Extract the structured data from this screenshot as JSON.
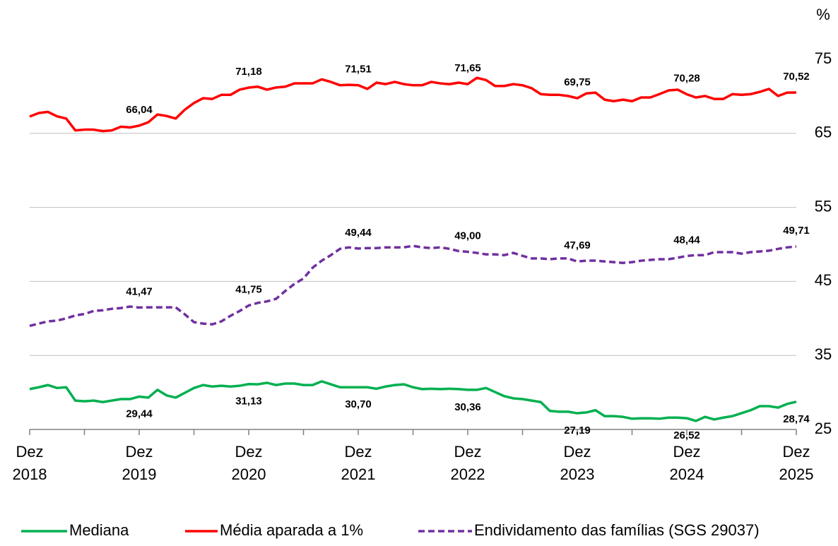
{
  "chart_data": {
    "type": "line",
    "y_unit": "%",
    "categories": [
      "Dez 2018",
      null,
      null,
      null,
      null,
      null,
      null,
      null,
      null,
      null,
      null,
      null,
      "Dez 2019",
      null,
      null,
      null,
      null,
      null,
      null,
      null,
      null,
      null,
      null,
      null,
      "Dez 2020",
      null,
      null,
      null,
      null,
      null,
      null,
      null,
      null,
      null,
      null,
      null,
      "Dez 2021",
      null,
      null,
      null,
      null,
      null,
      null,
      null,
      null,
      null,
      null,
      null,
      "Dez 2022",
      null,
      null,
      null,
      null,
      null,
      null,
      null,
      null,
      null,
      null,
      null,
      "Dez 2023",
      null,
      null,
      null,
      null,
      null,
      null,
      null,
      null,
      null,
      null,
      null,
      "Dez 2024",
      null,
      null,
      null,
      null,
      null,
      null,
      null,
      null,
      null,
      null,
      null,
      "Dez 2025"
    ],
    "ylim": [
      25,
      75
    ],
    "yticks": [
      25,
      35,
      45,
      55,
      65,
      75
    ],
    "grid": true,
    "series": [
      {
        "name": "Mediana",
        "color": "#00b050",
        "dash": false,
        "values": [
          30.45,
          30.7,
          31.0,
          30.6,
          30.7,
          28.9,
          28.8,
          28.9,
          28.7,
          28.9,
          29.1,
          29.1,
          29.44,
          29.3,
          30.35,
          29.6,
          29.3,
          29.95,
          30.6,
          31.0,
          30.8,
          30.9,
          30.8,
          30.9,
          31.13,
          31.1,
          31.3,
          31.0,
          31.2,
          31.2,
          31.0,
          31.0,
          31.5,
          31.1,
          30.7,
          30.7,
          30.7,
          30.7,
          30.5,
          30.8,
          31.0,
          31.1,
          30.7,
          30.45,
          30.5,
          30.45,
          30.5,
          30.45,
          30.36,
          30.35,
          30.6,
          30.05,
          29.5,
          29.2,
          29.1,
          28.9,
          28.7,
          27.5,
          27.4,
          27.4,
          27.19,
          27.3,
          27.6,
          26.8,
          26.8,
          26.7,
          26.45,
          26.5,
          26.5,
          26.45,
          26.6,
          26.6,
          26.52,
          26.15,
          26.7,
          26.35,
          26.6,
          26.8,
          27.2,
          27.6,
          28.15,
          28.15,
          27.95,
          28.45,
          28.74
        ],
        "value_labels": [
          null,
          null,
          null,
          null,
          null,
          null,
          null,
          null,
          null,
          null,
          null,
          null,
          "29,44",
          null,
          null,
          null,
          null,
          null,
          null,
          null,
          null,
          null,
          null,
          null,
          "31,13",
          null,
          null,
          null,
          null,
          null,
          null,
          null,
          null,
          null,
          null,
          null,
          "30,70",
          null,
          null,
          null,
          null,
          null,
          null,
          null,
          null,
          null,
          null,
          null,
          "30,36",
          null,
          null,
          null,
          null,
          null,
          null,
          null,
          null,
          null,
          null,
          null,
          "27,19",
          null,
          null,
          null,
          null,
          null,
          null,
          null,
          null,
          null,
          null,
          null,
          "26,52",
          null,
          null,
          null,
          null,
          null,
          null,
          null,
          null,
          null,
          null,
          null,
          "28,74"
        ]
      },
      {
        "name": "Média aparada a 1%",
        "color": "#ff0000",
        "dash": false,
        "values": [
          67.27,
          67.75,
          67.9,
          67.3,
          67.0,
          65.4,
          65.5,
          65.5,
          65.3,
          65.4,
          65.9,
          65.8,
          66.04,
          66.5,
          67.55,
          67.35,
          67.0,
          68.2,
          69.1,
          69.75,
          69.65,
          70.2,
          70.2,
          70.9,
          71.18,
          71.3,
          70.9,
          71.2,
          71.3,
          71.75,
          71.75,
          71.75,
          72.3,
          71.95,
          71.5,
          71.55,
          71.51,
          71.0,
          71.85,
          71.65,
          71.95,
          71.65,
          71.5,
          71.5,
          71.95,
          71.75,
          71.65,
          71.85,
          71.65,
          72.5,
          72.2,
          71.4,
          71.4,
          71.65,
          71.5,
          71.1,
          70.3,
          70.2,
          70.2,
          70.05,
          69.75,
          70.4,
          70.5,
          69.55,
          69.35,
          69.55,
          69.35,
          69.85,
          69.85,
          70.3,
          70.8,
          70.9,
          70.28,
          69.85,
          70.05,
          69.65,
          69.65,
          70.3,
          70.2,
          70.3,
          70.6,
          71.0,
          70.05,
          70.5,
          70.52
        ],
        "value_labels": [
          null,
          null,
          null,
          null,
          null,
          null,
          null,
          null,
          null,
          null,
          null,
          null,
          "66,04",
          null,
          null,
          null,
          null,
          null,
          null,
          null,
          null,
          null,
          null,
          null,
          "71,18",
          null,
          null,
          null,
          null,
          null,
          null,
          null,
          null,
          null,
          null,
          null,
          "71,51",
          null,
          null,
          null,
          null,
          null,
          null,
          null,
          null,
          null,
          null,
          null,
          "71,65",
          null,
          null,
          null,
          null,
          null,
          null,
          null,
          null,
          null,
          null,
          null,
          "69,75",
          null,
          null,
          null,
          null,
          null,
          null,
          null,
          null,
          null,
          null,
          null,
          "70,28",
          null,
          null,
          null,
          null,
          null,
          null,
          null,
          null,
          null,
          null,
          null,
          "70,52"
        ]
      },
      {
        "name": "Endividamento das famílias (SGS 29037)",
        "color": "#7030a0",
        "dash": true,
        "values": [
          39.0,
          39.3,
          39.6,
          39.7,
          40.0,
          40.4,
          40.6,
          41.0,
          41.1,
          41.3,
          41.4,
          41.6,
          41.47,
          41.5,
          41.5,
          41.5,
          41.5,
          40.55,
          39.5,
          39.3,
          39.2,
          39.6,
          40.35,
          41.0,
          41.75,
          42.1,
          42.3,
          42.65,
          43.7,
          44.65,
          45.4,
          46.85,
          47.8,
          48.55,
          49.4,
          49.6,
          49.44,
          49.5,
          49.5,
          49.6,
          49.6,
          49.6,
          49.8,
          49.6,
          49.5,
          49.6,
          49.4,
          49.1,
          49.0,
          48.85,
          48.65,
          48.65,
          48.55,
          48.85,
          48.45,
          48.1,
          48.1,
          48.0,
          48.1,
          48.1,
          47.69,
          47.8,
          47.8,
          47.7,
          47.6,
          47.5,
          47.6,
          47.8,
          47.9,
          48.0,
          48.0,
          48.2,
          48.44,
          48.55,
          48.55,
          48.95,
          48.95,
          48.95,
          48.75,
          48.95,
          49.05,
          49.15,
          49.4,
          49.6,
          49.71
        ],
        "value_labels": [
          null,
          null,
          null,
          null,
          null,
          null,
          null,
          null,
          null,
          null,
          null,
          null,
          "41,47",
          null,
          null,
          null,
          null,
          null,
          null,
          null,
          null,
          null,
          null,
          null,
          "41,75",
          null,
          null,
          null,
          null,
          null,
          null,
          null,
          null,
          null,
          null,
          null,
          "49,44",
          null,
          null,
          null,
          null,
          null,
          null,
          null,
          null,
          null,
          null,
          null,
          "49,00",
          null,
          null,
          null,
          null,
          null,
          null,
          null,
          null,
          null,
          null,
          null,
          "47,69",
          null,
          null,
          null,
          null,
          null,
          null,
          null,
          null,
          null,
          null,
          null,
          "48,44",
          null,
          null,
          null,
          null,
          null,
          null,
          null,
          null,
          null,
          null,
          null,
          "49,71"
        ]
      }
    ]
  }
}
